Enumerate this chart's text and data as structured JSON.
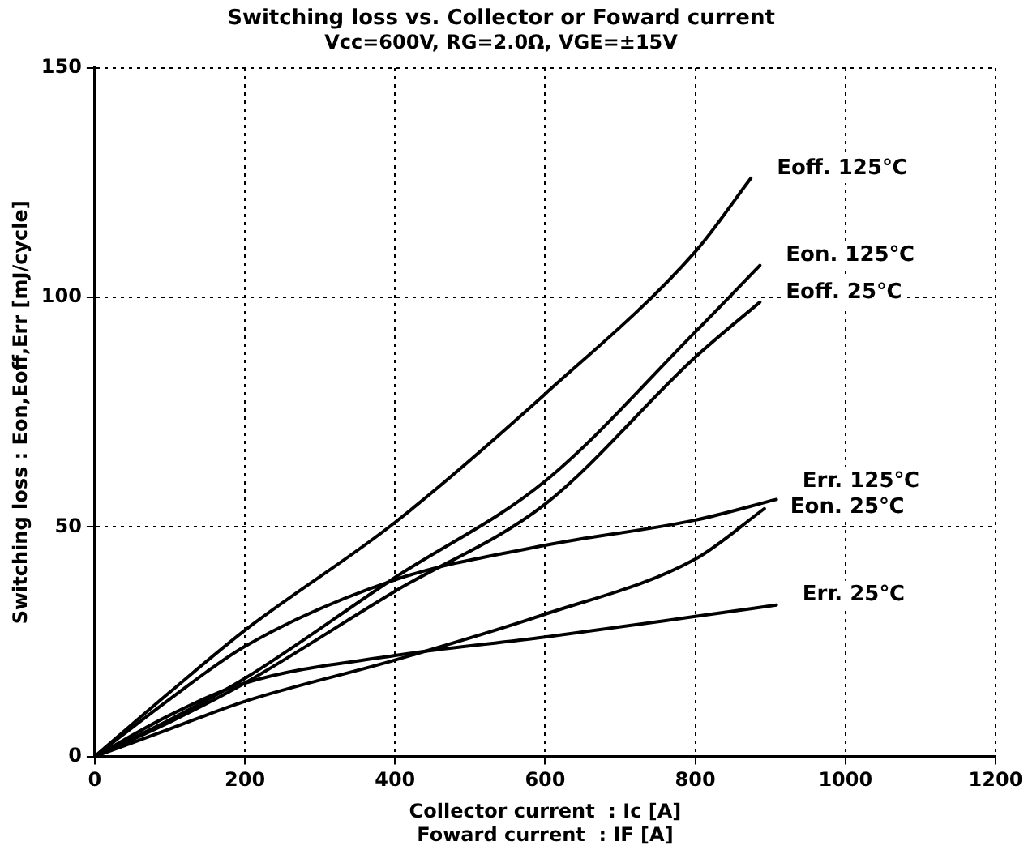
{
  "chart_data": {
    "type": "line",
    "title": "Switching loss vs. Collector or Foward current",
    "subtitle": "Vcc=600V, RG=2.0Ω, VGE=±15V",
    "xlabel": "Collector current  : Ic [A]\nFoward current  : IF [A]",
    "ylabel": "Switching loss : Eon,Eoff,Err [mJ/cycle]",
    "xlim": [
      0,
      1200
    ],
    "xticks": [
      0,
      200,
      400,
      600,
      800,
      1000,
      1200
    ],
    "ylim": [
      0,
      150
    ],
    "yticks": [
      0,
      50,
      100,
      150
    ],
    "grid": true,
    "legend": false,
    "marker": "none",
    "line_style": "solid",
    "series": [
      {
        "name": "Eoff. 125℃",
        "color": "#000000",
        "x": [
          0,
          100,
          200,
          400,
          600,
          800,
          874
        ],
        "values": [
          0,
          14,
          27.5,
          51,
          79,
          110,
          126
        ]
      },
      {
        "name": "Eon. 125℃",
        "color": "#000000",
        "x": [
          0,
          100,
          200,
          400,
          600,
          800,
          886
        ],
        "values": [
          0,
          8,
          17,
          39,
          60,
          92.5,
          107
        ]
      },
      {
        "name": "Eoff. 25℃",
        "color": "#000000",
        "x": [
          0,
          100,
          200,
          400,
          600,
          800,
          886
        ],
        "values": [
          0,
          7.5,
          16,
          36,
          55,
          87,
          99
        ]
      },
      {
        "name": "Err. 125℃",
        "color": "#000000",
        "x": [
          0,
          100,
          200,
          400,
          600,
          800,
          908
        ],
        "values": [
          0,
          12.5,
          24,
          38.5,
          46,
          51.5,
          56
        ]
      },
      {
        "name": "Eon. 25℃",
        "color": "#000000",
        "x": [
          0,
          100,
          200,
          400,
          600,
          800,
          892
        ],
        "values": [
          0,
          6,
          12,
          21,
          31,
          43,
          54
        ]
      },
      {
        "name": "Err. 25℃",
        "color": "#000000",
        "x": [
          0,
          100,
          200,
          400,
          600,
          800,
          908
        ],
        "values": [
          0,
          9,
          16,
          22,
          26,
          30.5,
          33
        ]
      }
    ]
  }
}
